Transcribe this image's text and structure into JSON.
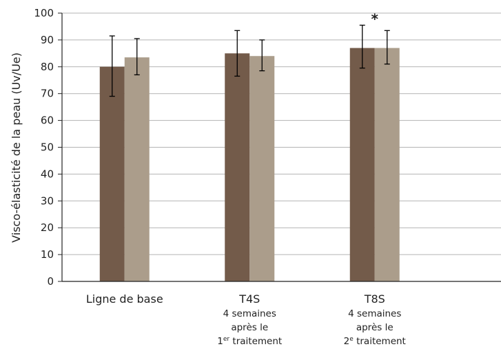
{
  "chart_data": {
    "type": "bar",
    "ylabel": "Visco-élasticité de la peau (Uv/Ue)",
    "ylim": [
      0,
      100
    ],
    "yticks": [
      0,
      10,
      20,
      30,
      40,
      50,
      60,
      70,
      80,
      90,
      100
    ],
    "grid": true,
    "categories": [
      {
        "label": "Ligne de base",
        "sublines": []
      },
      {
        "label": "T4S",
        "sublines": [
          {
            "text": "4 semaines"
          },
          {
            "text": "après le"
          },
          {
            "pre": "1",
            "sup": "er",
            "post": " traitement"
          }
        ]
      },
      {
        "label": "T8S",
        "sublines": [
          {
            "text": "4 semaines"
          },
          {
            "text": "après le"
          },
          {
            "pre": "2",
            "sup": "e",
            "post": " traitement"
          }
        ]
      }
    ],
    "series": [
      {
        "color": "#735b4a",
        "values": [
          80,
          85,
          87
        ],
        "err_low": [
          69,
          76.5,
          79.5
        ],
        "err_high": [
          91.5,
          93.5,
          95.5
        ]
      },
      {
        "color": "#ab9d8b",
        "values": [
          83.5,
          84,
          87
        ],
        "err_low": [
          77,
          78.5,
          81
        ],
        "err_high": [
          90.5,
          90,
          93.5
        ]
      }
    ],
    "annotations": [
      {
        "text": "*",
        "category_index": 2
      }
    ]
  }
}
